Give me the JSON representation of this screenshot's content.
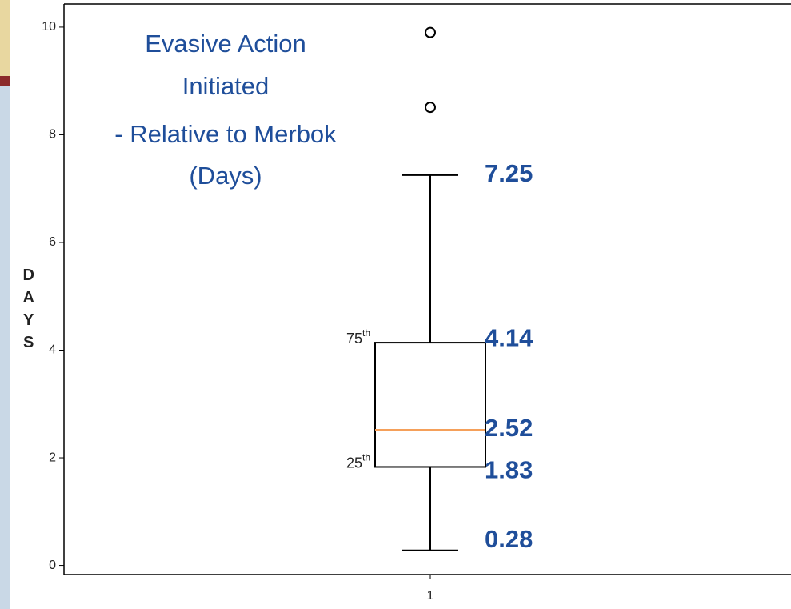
{
  "chart_data": {
    "type": "box",
    "title": [
      "Evasive Action",
      "Initiated",
      "- Relative to Merbok",
      "(Days)"
    ],
    "y_label": "DAYS",
    "categories": [
      "1"
    ],
    "boxes": [
      {
        "whislo": 0.28,
        "q1": 1.83,
        "med": 2.52,
        "q3": 4.14,
        "whishi": 7.25,
        "fliers": [
          8.51,
          9.9
        ]
      }
    ],
    "box_color": "#000000",
    "median_color": "#f5a05a",
    "label_color": "#1f4e9a",
    "quartile_labels": [
      {
        "number": "75",
        "suffix": "th"
      },
      {
        "number": "25",
        "suffix": "th"
      }
    ],
    "ylim": [
      -0.17,
      10.43
    ],
    "yticks": [
      0,
      2,
      4,
      6,
      8,
      10
    ]
  }
}
